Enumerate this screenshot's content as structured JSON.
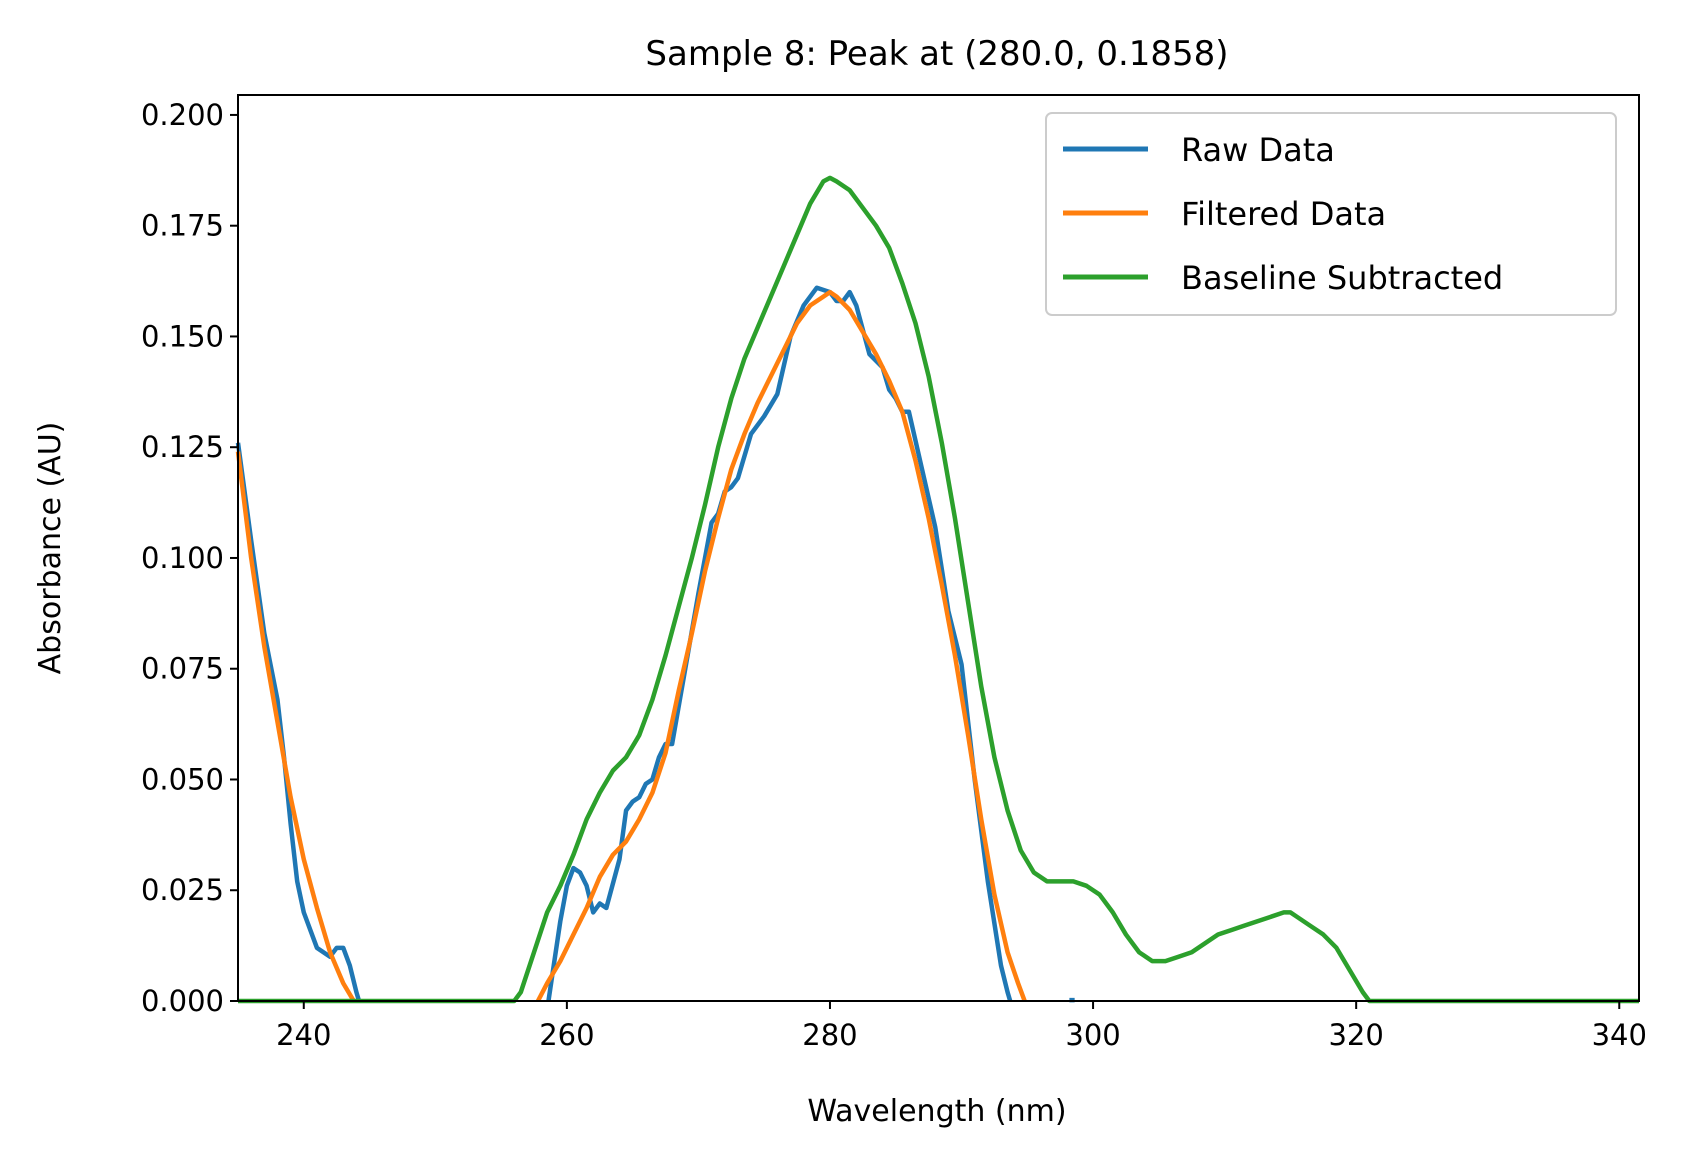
{
  "colors": {
    "raw": "#1f77b4",
    "filtered": "#ff7f0e",
    "baseline": "#2ca02c"
  },
  "chart_data": {
    "type": "line",
    "title": "Sample 8: Peak at (280.0, 0.1858)",
    "xlabel": "Wavelength (nm)",
    "ylabel": "Absorbance (AU)",
    "xlim": [
      235,
      341.5
    ],
    "ylim": [
      0,
      0.2045
    ],
    "xticks": [
      240,
      260,
      280,
      300,
      320,
      340
    ],
    "xtick_labels": [
      "240",
      "260",
      "280",
      "300",
      "320",
      "340"
    ],
    "yticks": [
      0,
      0.025,
      0.05,
      0.075,
      0.1,
      0.125,
      0.15,
      0.175,
      0.2
    ],
    "ytick_labels": [
      "0.000",
      "0.025",
      "0.050",
      "0.075",
      "0.100",
      "0.125",
      "0.150",
      "0.175",
      "0.200"
    ],
    "grid": false,
    "legend": {
      "position": "upper right"
    },
    "series": [
      {
        "name": "Raw Data",
        "color": "#1f77b4",
        "segments": [
          [
            [
              235,
              0.126
            ],
            [
              236,
              0.104
            ],
            [
              237,
              0.083
            ],
            [
              238,
              0.068
            ],
            [
              238.5,
              0.055
            ],
            [
              239,
              0.04
            ],
            [
              239.5,
              0.027
            ],
            [
              240,
              0.02
            ],
            [
              241,
              0.012
            ],
            [
              242,
              0.01
            ],
            [
              242.5,
              0.012
            ],
            [
              243,
              0.012
            ],
            [
              243.5,
              0.008
            ],
            [
              244,
              0.002
            ],
            [
              244.2,
              0
            ]
          ],
          [
            [
              258.6,
              0
            ],
            [
              259,
              0.008
            ],
            [
              259.5,
              0.018
            ],
            [
              260,
              0.026
            ],
            [
              260.5,
              0.03
            ],
            [
              261,
              0.029
            ],
            [
              261.5,
              0.026
            ],
            [
              262,
              0.02
            ],
            [
              262.5,
              0.022
            ],
            [
              263,
              0.021
            ],
            [
              264,
              0.032
            ],
            [
              264.5,
              0.043
            ],
            [
              265,
              0.045
            ],
            [
              265.5,
              0.046
            ],
            [
              266,
              0.049
            ],
            [
              266.5,
              0.05
            ],
            [
              267,
              0.055
            ],
            [
              267.5,
              0.058
            ],
            [
              268,
              0.058
            ],
            [
              269,
              0.075
            ],
            [
              270,
              0.092
            ],
            [
              271,
              0.108
            ],
            [
              271.5,
              0.11
            ],
            [
              272,
              0.115
            ],
            [
              272.5,
              0.116
            ],
            [
              273,
              0.118
            ],
            [
              274,
              0.128
            ],
            [
              275,
              0.132
            ],
            [
              276,
              0.137
            ],
            [
              277,
              0.15
            ],
            [
              278,
              0.157
            ],
            [
              279,
              0.161
            ],
            [
              280,
              0.16
            ],
            [
              280.5,
              0.158
            ],
            [
              281,
              0.158
            ],
            [
              281.5,
              0.16
            ],
            [
              282,
              0.157
            ],
            [
              283,
              0.146
            ],
            [
              284,
              0.143
            ],
            [
              284.5,
              0.138
            ],
            [
              285,
              0.136
            ],
            [
              285.5,
              0.133
            ],
            [
              286,
              0.133
            ],
            [
              287,
              0.12
            ],
            [
              288,
              0.107
            ],
            [
              289,
              0.088
            ],
            [
              290,
              0.076
            ],
            [
              291,
              0.05
            ],
            [
              292,
              0.027
            ],
            [
              293,
              0.008
            ],
            [
              293.5,
              0.002
            ],
            [
              293.7,
              0
            ]
          ],
          [
            [
              298.2,
              0.0002
            ],
            [
              298.6,
              0.0002
            ]
          ]
        ]
      },
      {
        "name": "Filtered Data",
        "color": "#ff7f0e",
        "segments": [
          [
            [
              235,
              0.124
            ],
            [
              236,
              0.1
            ],
            [
              237,
              0.08
            ],
            [
              238,
              0.063
            ],
            [
              239,
              0.046
            ],
            [
              240,
              0.032
            ],
            [
              241,
              0.021
            ],
            [
              242,
              0.011
            ],
            [
              243,
              0.004
            ],
            [
              243.8,
              0
            ]
          ],
          [
            [
              257.8,
              0
            ],
            [
              258.5,
              0.004
            ],
            [
              259.5,
              0.009
            ],
            [
              260.5,
              0.015
            ],
            [
              261.5,
              0.021
            ],
            [
              262.5,
              0.028
            ],
            [
              263.5,
              0.033
            ],
            [
              264.5,
              0.036
            ],
            [
              265.5,
              0.041
            ],
            [
              266.5,
              0.047
            ],
            [
              267.5,
              0.056
            ],
            [
              268.5,
              0.07
            ],
            [
              269.5,
              0.083
            ],
            [
              270.5,
              0.097
            ],
            [
              271.5,
              0.109
            ],
            [
              272.5,
              0.12
            ],
            [
              273.5,
              0.128
            ],
            [
              274.5,
              0.135
            ],
            [
              275.5,
              0.141
            ],
            [
              276.5,
              0.147
            ],
            [
              277.5,
              0.153
            ],
            [
              278.5,
              0.157
            ],
            [
              279.5,
              0.159
            ],
            [
              280,
              0.16
            ],
            [
              280.5,
              0.159
            ],
            [
              281.5,
              0.156
            ],
            [
              282.5,
              0.151
            ],
            [
              283.5,
              0.146
            ],
            [
              284.5,
              0.14
            ],
            [
              285.5,
              0.133
            ],
            [
              286.5,
              0.122
            ],
            [
              287.5,
              0.109
            ],
            [
              288.5,
              0.094
            ],
            [
              289.5,
              0.078
            ],
            [
              290.5,
              0.06
            ],
            [
              291.5,
              0.041
            ],
            [
              292.5,
              0.024
            ],
            [
              293.5,
              0.011
            ],
            [
              294.3,
              0.004
            ],
            [
              294.8,
              0
            ]
          ]
        ]
      },
      {
        "name": "Baseline Subtracted",
        "color": "#2ca02c",
        "segments": [
          [
            [
              235,
              0
            ],
            [
              256,
              0
            ],
            [
              256.5,
              0.002
            ],
            [
              257.5,
              0.011
            ],
            [
              258.5,
              0.02
            ],
            [
              259.5,
              0.026
            ],
            [
              260.5,
              0.033
            ],
            [
              261.5,
              0.041
            ],
            [
              262.5,
              0.047
            ],
            [
              263.5,
              0.052
            ],
            [
              264.5,
              0.055
            ],
            [
              265.5,
              0.06
            ],
            [
              266.5,
              0.068
            ],
            [
              267.5,
              0.078
            ],
            [
              268.5,
              0.089
            ],
            [
              269.5,
              0.1
            ],
            [
              270.5,
              0.112
            ],
            [
              271.5,
              0.125
            ],
            [
              272.5,
              0.136
            ],
            [
              273.5,
              0.145
            ],
            [
              274.5,
              0.152
            ],
            [
              275.5,
              0.159
            ],
            [
              276.5,
              0.166
            ],
            [
              277.5,
              0.173
            ],
            [
              278.5,
              0.18
            ],
            [
              279.5,
              0.185
            ],
            [
              280,
              0.1858
            ],
            [
              280.5,
              0.185
            ],
            [
              281.5,
              0.183
            ],
            [
              282.5,
              0.179
            ],
            [
              283.5,
              0.175
            ],
            [
              284.5,
              0.17
            ],
            [
              285.5,
              0.162
            ],
            [
              286.5,
              0.153
            ],
            [
              287.5,
              0.141
            ],
            [
              288.5,
              0.126
            ],
            [
              289.5,
              0.109
            ],
            [
              290.5,
              0.09
            ],
            [
              291.5,
              0.071
            ],
            [
              292.5,
              0.055
            ],
            [
              293.5,
              0.043
            ],
            [
              294.5,
              0.034
            ],
            [
              295.5,
              0.029
            ],
            [
              296.5,
              0.027
            ],
            [
              297.5,
              0.027
            ],
            [
              298.5,
              0.027
            ],
            [
              299.5,
              0.026
            ],
            [
              300.5,
              0.024
            ],
            [
              301.5,
              0.02
            ],
            [
              302.5,
              0.015
            ],
            [
              303.5,
              0.011
            ],
            [
              304.5,
              0.009
            ],
            [
              305.5,
              0.009
            ],
            [
              306.5,
              0.01
            ],
            [
              307.5,
              0.011
            ],
            [
              308.5,
              0.013
            ],
            [
              309.5,
              0.015
            ],
            [
              310.5,
              0.016
            ],
            [
              311.5,
              0.017
            ],
            [
              312.5,
              0.018
            ],
            [
              313.5,
              0.019
            ],
            [
              314.5,
              0.02
            ],
            [
              315,
              0.02
            ],
            [
              315.5,
              0.019
            ],
            [
              316.5,
              0.017
            ],
            [
              317.5,
              0.015
            ],
            [
              318.5,
              0.012
            ],
            [
              319.5,
              0.007
            ],
            [
              320.5,
              0.002
            ],
            [
              321,
              0
            ],
            [
              341.5,
              0
            ]
          ]
        ]
      }
    ]
  }
}
